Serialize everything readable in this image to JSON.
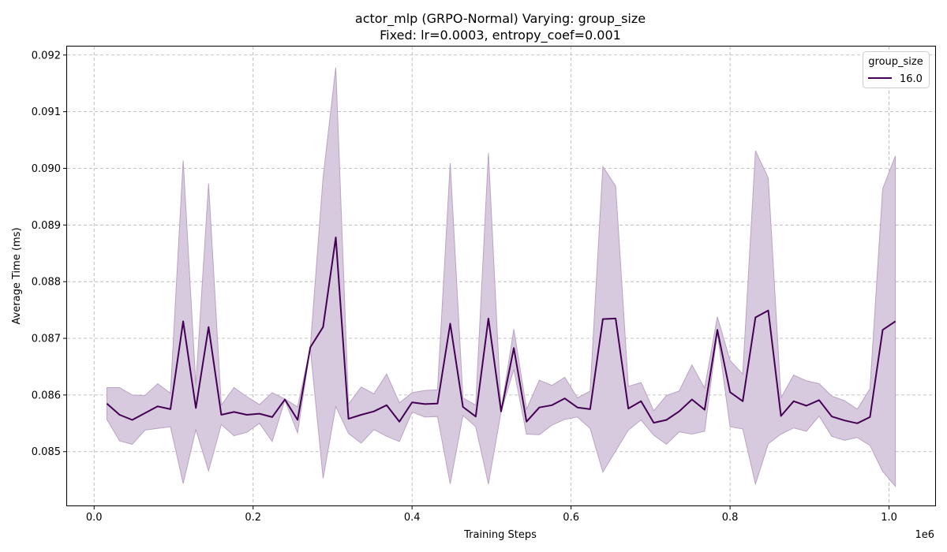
{
  "chart_data": {
    "type": "line",
    "title": "actor_mlp (GRPO-Normal) Varying: group_size",
    "subtitle": "Fixed: lr=0.0003, entropy_coef=0.001",
    "xlabel": "Training Steps",
    "ylabel": "Average Time (ms)",
    "x_offset_label": "1e6",
    "xlim": [
      -0.034,
      1.058
    ],
    "ylim": [
      0.08405,
      0.09215
    ],
    "xticks": [
      0.0,
      0.2,
      0.4,
      0.6,
      0.8,
      1.0
    ],
    "xtick_labels": [
      "0.0",
      "0.2",
      "0.4",
      "0.6",
      "0.8",
      "1.0"
    ],
    "yticks": [
      0.085,
      0.086,
      0.087,
      0.088,
      0.089,
      0.09,
      0.091,
      0.092
    ],
    "ytick_labels": [
      "0.085",
      "0.086",
      "0.087",
      "0.088",
      "0.089",
      "0.090",
      "0.091",
      "0.092"
    ],
    "grid": true,
    "legend": {
      "title": "group_size",
      "position": "top-right"
    },
    "series": [
      {
        "name": "16.0",
        "color": "#440154",
        "band_color": "#d8cade",
        "band_edge_color": "#b9a3c3",
        "x": [
          0.016,
          0.032,
          0.048,
          0.064,
          0.08,
          0.096,
          0.112,
          0.128,
          0.144,
          0.16,
          0.176,
          0.192,
          0.208,
          0.224,
          0.24,
          0.256,
          0.272,
          0.288,
          0.304,
          0.32,
          0.336,
          0.352,
          0.368,
          0.384,
          0.4,
          0.416,
          0.432,
          0.448,
          0.464,
          0.48,
          0.496,
          0.512,
          0.528,
          0.544,
          0.56,
          0.576,
          0.592,
          0.608,
          0.624,
          0.64,
          0.656,
          0.672,
          0.688,
          0.704,
          0.72,
          0.736,
          0.752,
          0.768,
          0.784,
          0.8,
          0.816,
          0.832,
          0.848,
          0.864,
          0.88,
          0.896,
          0.912,
          0.928,
          0.944,
          0.96,
          0.976,
          0.992,
          1.008
        ],
        "y": [
          0.08585,
          0.08565,
          0.08556,
          0.08568,
          0.0858,
          0.08575,
          0.0873,
          0.08577,
          0.0872,
          0.08565,
          0.0857,
          0.08565,
          0.08567,
          0.08561,
          0.08592,
          0.08556,
          0.08684,
          0.0872,
          0.08878,
          0.08558,
          0.08565,
          0.08571,
          0.08582,
          0.08553,
          0.08587,
          0.08584,
          0.08585,
          0.08726,
          0.08579,
          0.08562,
          0.08735,
          0.08571,
          0.08683,
          0.08553,
          0.08578,
          0.08582,
          0.08594,
          0.08578,
          0.08575,
          0.08734,
          0.08735,
          0.08576,
          0.08589,
          0.08551,
          0.08556,
          0.08571,
          0.08592,
          0.08574,
          0.08715,
          0.08605,
          0.08589,
          0.08737,
          0.08749,
          0.08563,
          0.08589,
          0.08581,
          0.08591,
          0.08562,
          0.08555,
          0.0855,
          0.08561,
          0.08715,
          0.0873
        ],
        "lower": [
          0.08557,
          0.08519,
          0.08513,
          0.08538,
          0.08541,
          0.08544,
          0.08444,
          0.08539,
          0.08466,
          0.08548,
          0.08528,
          0.08534,
          0.0855,
          0.08518,
          0.08591,
          0.08533,
          0.08683,
          0.08453,
          0.0858,
          0.08532,
          0.08515,
          0.08539,
          0.08527,
          0.08518,
          0.0857,
          0.08561,
          0.08562,
          0.08443,
          0.08564,
          0.08544,
          0.08443,
          0.08571,
          0.08645,
          0.08531,
          0.0853,
          0.08547,
          0.08557,
          0.08561,
          0.08541,
          0.08464,
          0.08501,
          0.08538,
          0.08556,
          0.08529,
          0.08513,
          0.08535,
          0.08531,
          0.08536,
          0.0871,
          0.08544,
          0.0854,
          0.08443,
          0.08514,
          0.08531,
          0.08542,
          0.08536,
          0.08563,
          0.08527,
          0.0852,
          0.08525,
          0.08511,
          0.08465,
          0.08439
        ],
        "upper": [
          0.08613,
          0.08613,
          0.086,
          0.08599,
          0.0862,
          0.08603,
          0.09014,
          0.08617,
          0.08973,
          0.08582,
          0.08613,
          0.08597,
          0.08583,
          0.08604,
          0.08593,
          0.08579,
          0.08684,
          0.08984,
          0.09178,
          0.08584,
          0.08614,
          0.08602,
          0.08637,
          0.08586,
          0.08604,
          0.08608,
          0.08609,
          0.09009,
          0.08595,
          0.08582,
          0.09027,
          0.08572,
          0.08716,
          0.08575,
          0.08626,
          0.08617,
          0.08631,
          0.08595,
          0.08607,
          0.09003,
          0.08969,
          0.08615,
          0.08622,
          0.08572,
          0.08599,
          0.08607,
          0.08653,
          0.08612,
          0.08738,
          0.08661,
          0.08637,
          0.09031,
          0.08983,
          0.08595,
          0.08635,
          0.08625,
          0.0862,
          0.08598,
          0.0859,
          0.08575,
          0.08611,
          0.08964,
          0.09022
        ]
      }
    ]
  }
}
